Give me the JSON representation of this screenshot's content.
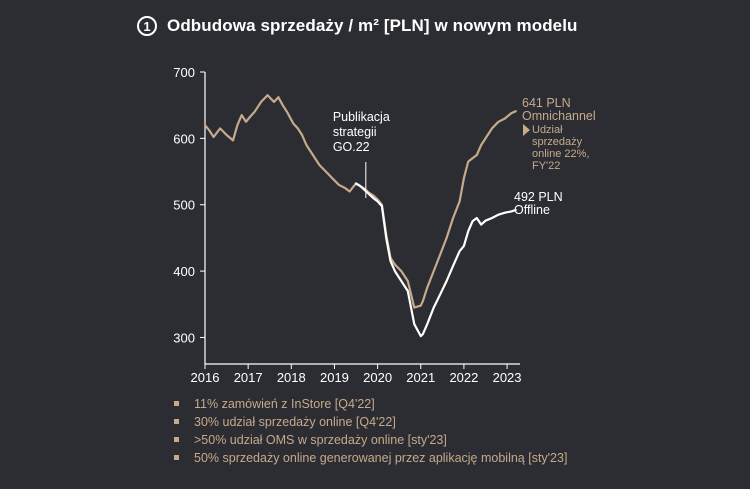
{
  "header": {
    "badge": "1",
    "title": "Odbudowa sprzedaży / m² [PLN] w nowym modelu"
  },
  "chart_data": {
    "type": "line",
    "title": "Odbudowa sprzedaży / m² [PLN] w nowym modelu",
    "xlabel": "",
    "ylabel": "",
    "xlim": [
      2016,
      2023.3
    ],
    "ylim": [
      260,
      700
    ],
    "yticks": [
      300,
      400,
      500,
      600,
      700
    ],
    "xticks": [
      2016,
      2017,
      2018,
      2019,
      2020,
      2021,
      2022,
      2023
    ],
    "grid": false,
    "colors": {
      "omnichannel": "#c7a98b",
      "offline": "#ffffff",
      "axis": "#ffffff"
    },
    "series": [
      {
        "name": "Omnichannel",
        "end_label": "641 PLN",
        "x": [
          2016.0,
          2016.1,
          2016.2,
          2016.35,
          2016.5,
          2016.65,
          2016.75,
          2016.85,
          2016.95,
          2017.05,
          2017.15,
          2017.3,
          2017.45,
          2017.6,
          2017.7,
          2017.8,
          2017.9,
          2018.0,
          2018.05,
          2018.15,
          2018.25,
          2018.35,
          2018.5,
          2018.65,
          2018.8,
          2018.95,
          2019.1,
          2019.25,
          2019.35,
          2019.45,
          2019.5,
          2019.6,
          2019.7,
          2019.8,
          2019.9,
          2020.0,
          2020.1,
          2020.2,
          2020.3,
          2020.4,
          2020.55,
          2020.7,
          2020.85,
          2021.0,
          2021.05,
          2021.15,
          2021.3,
          2021.45,
          2021.6,
          2021.75,
          2021.9,
          2022.0,
          2022.1,
          2022.2,
          2022.3,
          2022.4,
          2022.5,
          2022.65,
          2022.8,
          2022.95,
          2023.1,
          2023.2
        ],
        "values": [
          620,
          612,
          602,
          615,
          605,
          597,
          620,
          635,
          625,
          633,
          640,
          655,
          665,
          655,
          662,
          650,
          640,
          628,
          622,
          615,
          605,
          590,
          575,
          560,
          550,
          540,
          530,
          525,
          520,
          528,
          532,
          528,
          524,
          518,
          514,
          508,
          500,
          455,
          420,
          410,
          400,
          385,
          345,
          348,
          355,
          375,
          400,
          425,
          450,
          480,
          505,
          540,
          565,
          570,
          575,
          590,
          600,
          615,
          625,
          630,
          638,
          641
        ]
      },
      {
        "name": "Offline",
        "end_label": "492 PLN",
        "x": [
          2019.5,
          2019.6,
          2019.7,
          2019.8,
          2019.9,
          2020.0,
          2020.1,
          2020.2,
          2020.3,
          2020.4,
          2020.55,
          2020.7,
          2020.85,
          2021.0,
          2021.05,
          2021.15,
          2021.3,
          2021.45,
          2021.6,
          2021.75,
          2021.9,
          2022.0,
          2022.1,
          2022.2,
          2022.3,
          2022.4,
          2022.5,
          2022.65,
          2022.8,
          2022.95,
          2023.1,
          2023.2
        ],
        "values": [
          532,
          528,
          522,
          516,
          510,
          505,
          498,
          450,
          415,
          400,
          385,
          370,
          320,
          302,
          305,
          320,
          345,
          365,
          385,
          408,
          430,
          438,
          460,
          475,
          480,
          470,
          476,
          480,
          485,
          488,
          490,
          492
        ]
      }
    ],
    "annotations": {
      "strategy": {
        "text": [
          "Publikacja",
          "strategii",
          "GO.22"
        ],
        "x": 2019.75
      },
      "omni_label": "Omnichannel",
      "omni_note": [
        "Udział",
        "sprzedaży",
        "online 22%,",
        "FY'22"
      ],
      "offline_label": "Offline"
    }
  },
  "bullets": [
    "11% zamówień z InStore [Q4'22]",
    "30% udział sprzedaży online [Q4'22]",
    ">50% udział OMS w sprzedaży online [sty'23]",
    "50% sprzedaży online generowanej przez aplikację mobilną [sty'23]"
  ]
}
